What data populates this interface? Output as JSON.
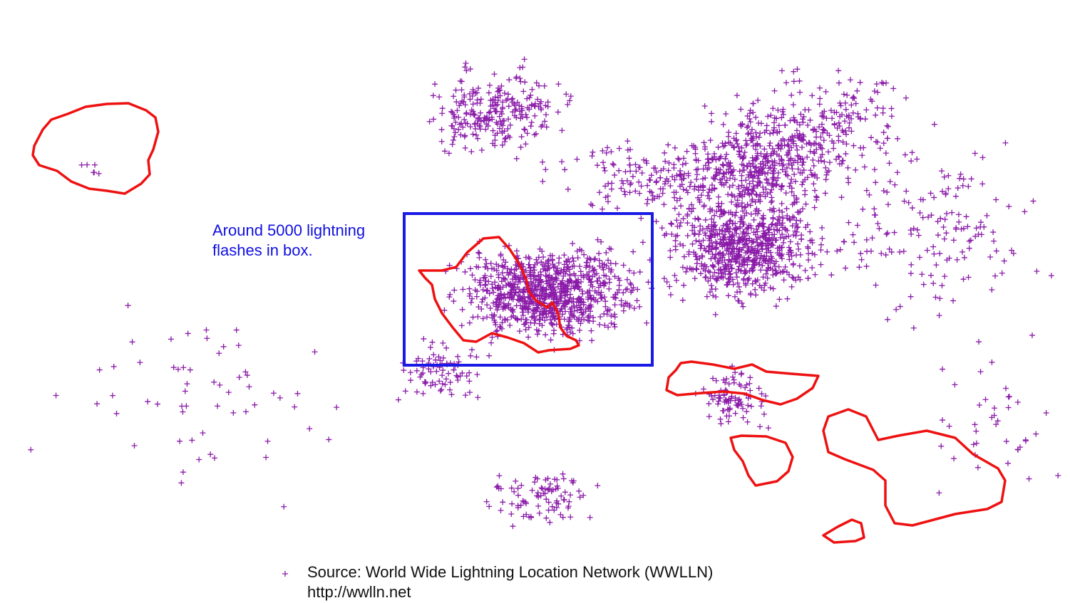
{
  "annotation": {
    "line1": "Around 5000 lightning",
    "line2": "flashes in box."
  },
  "source": {
    "line1": "Source: World Wide Lightning Location Network (WWLLN)",
    "line2": "http://wwlln.net"
  },
  "colors": {
    "strike": "#8a1aa8",
    "coastline": "#ee1111",
    "box": "#1a1ae6",
    "annotation_text": "#1010e0",
    "source_text": "#111111"
  },
  "icons": {
    "strike_marker": "plus-icon"
  }
}
